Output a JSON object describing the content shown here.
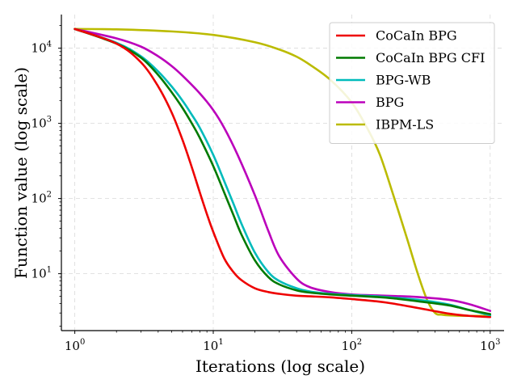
{
  "chart_data": {
    "type": "line",
    "title": "",
    "xlabel": "Iterations (log scale)",
    "ylabel": "Function value (log scale)",
    "xscale": "log",
    "yscale": "log",
    "xlim": [
      0.8,
      1260
    ],
    "ylim": [
      1.75,
      28000
    ],
    "xticks": [
      {
        "value": 1,
        "base": "10",
        "exp": "0"
      },
      {
        "value": 10,
        "base": "10",
        "exp": "1"
      },
      {
        "value": 100,
        "base": "10",
        "exp": "2"
      },
      {
        "value": 1000,
        "base": "10",
        "exp": "3"
      }
    ],
    "yticks": [
      {
        "value": 10,
        "base": "10",
        "exp": "1"
      },
      {
        "value": 100,
        "base": "10",
        "exp": "2"
      },
      {
        "value": 1000,
        "base": "10",
        "exp": "3"
      },
      {
        "value": 10000,
        "base": "10",
        "exp": "4"
      }
    ],
    "grid": true,
    "legend_position": "top-right",
    "series": [
      {
        "name": "CoCaIn BPG",
        "color": "#ee0000",
        "x": [
          1,
          2,
          3,
          4,
          5,
          6,
          7,
          8,
          9,
          10,
          12,
          14,
          16,
          20,
          25,
          30,
          40,
          50,
          70,
          100,
          150,
          200,
          300,
          500,
          700,
          1000
        ],
        "y": [
          18000,
          11500,
          6500,
          3100,
          1400,
          600,
          260,
          120,
          62,
          36,
          16,
          10.5,
          8.2,
          6.4,
          5.7,
          5.4,
          5.1,
          5.0,
          4.85,
          4.6,
          4.3,
          4.0,
          3.5,
          2.95,
          2.75,
          2.65
        ]
      },
      {
        "name": "CoCaIn BPG CFI",
        "color": "#007a00",
        "x": [
          1,
          2,
          3,
          4,
          5,
          6,
          7,
          8,
          10,
          12,
          14,
          16,
          20,
          25,
          30,
          40,
          50,
          70,
          100,
          150,
          200,
          300,
          500,
          700,
          1000
        ],
        "y": [
          18000,
          11500,
          7500,
          4400,
          2600,
          1600,
          1000,
          640,
          270,
          120,
          60,
          33,
          15,
          9.0,
          7.2,
          6.0,
          5.6,
          5.3,
          5.1,
          4.9,
          4.7,
          4.3,
          3.8,
          3.3,
          2.9
        ]
      },
      {
        "name": "BPG-WB",
        "color": "#00bbbb",
        "x": [
          1,
          2,
          3,
          4,
          5,
          6,
          7,
          8,
          10,
          12,
          14,
          16,
          20,
          25,
          30,
          40,
          50,
          70,
          100,
          150,
          200,
          300,
          500,
          700,
          1000
        ],
        "y": [
          18000,
          11800,
          7800,
          4900,
          3100,
          2000,
          1300,
          870,
          380,
          170,
          85,
          46,
          19,
          10.5,
          8.0,
          6.4,
          5.8,
          5.4,
          5.2,
          5.0,
          4.8,
          4.5,
          3.9,
          3.3,
          2.8
        ]
      },
      {
        "name": "BPG",
        "color": "#bb00bb",
        "x": [
          1,
          2,
          3,
          4,
          5,
          6,
          8,
          10,
          12,
          15,
          20,
          25,
          30,
          40,
          50,
          70,
          100,
          150,
          200,
          300,
          500,
          700,
          1000
        ],
        "y": [
          18000,
          13500,
          10500,
          7800,
          5800,
          4300,
          2500,
          1500,
          870,
          380,
          110,
          37,
          17,
          8.6,
          6.6,
          5.7,
          5.3,
          5.15,
          5.05,
          4.9,
          4.5,
          3.95,
          3.2
        ]
      },
      {
        "name": "IBPM-LS",
        "color": "#bbbb00",
        "x": [
          1,
          2,
          5,
          10,
          20,
          30,
          40,
          50,
          70,
          100,
          130,
          160,
          200,
          250,
          300,
          350,
          400,
          450,
          500,
          700,
          1000
        ],
        "y": [
          18000,
          17800,
          16700,
          15000,
          12000,
          9600,
          7700,
          6000,
          3800,
          1900,
          850,
          380,
          110,
          30,
          10,
          4.5,
          3.0,
          2.85,
          2.8,
          2.75,
          2.75
        ]
      }
    ]
  }
}
